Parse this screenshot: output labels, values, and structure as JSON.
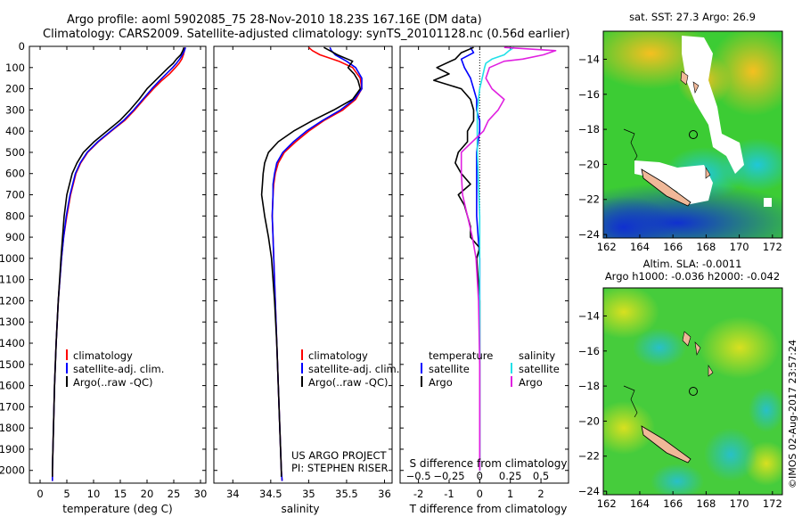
{
  "title_line1": "Argo profile: aoml 5902085_75 28-Nov-2010 18.23S 167.16E (DM data)",
  "title_line2": "Climatology: CARS2009. Satellite-adjusted climatology: synTS_20101128.nc (0.56d earlier)",
  "colors": {
    "clim": "#ff0000",
    "sat": "#0000ff",
    "argo": "#000000",
    "sat_sal": "#22e0e8",
    "argo_sal": "#e020e0"
  },
  "depth_axis": {
    "ticks": [
      0,
      100,
      200,
      300,
      400,
      500,
      600,
      700,
      800,
      900,
      1000,
      1100,
      1200,
      1300,
      1400,
      1500,
      1600,
      1700,
      1800,
      1900,
      2000
    ],
    "range": [
      0,
      2060
    ]
  },
  "legend": {
    "clim": "climatology",
    "sat": "satellite-adj. clim.",
    "argo": "Argo(..raw -QC)"
  },
  "diff_legend": {
    "temp_header": "temperature",
    "sal_header": "salinity",
    "temp_sat": "satellite",
    "temp_argo": "Argo",
    "sal_sat": "satellite",
    "sal_argo": "Argo"
  },
  "credits": {
    "line1": "US ARGO PROJECT",
    "line2": "PI: STEPHEN RISER"
  },
  "chart_data": [
    {
      "type": "line",
      "name": "temperature",
      "xlabel": "temperature (deg C)",
      "xlim": [
        -2,
        31
      ],
      "xticks": [
        0,
        5,
        10,
        15,
        20,
        25,
        30
      ],
      "ylim": [
        0,
        2060
      ],
      "series": [
        {
          "name": "climatology",
          "depth": [
            5,
            20,
            40,
            60,
            80,
            100,
            130,
            160,
            200,
            250,
            300,
            350,
            400,
            450,
            500,
            550,
            600,
            700,
            800,
            900,
            1000,
            1200,
            1400,
            1600,
            1800,
            2000,
            2050
          ],
          "values": [
            27.1,
            27.0,
            26.8,
            26.5,
            26.0,
            25.3,
            24.2,
            22.8,
            21.2,
            19.4,
            17.7,
            15.8,
            13.3,
            10.9,
            8.9,
            7.6,
            6.7,
            5.7,
            5.0,
            4.4,
            4.0,
            3.4,
            3.0,
            2.7,
            2.5,
            2.3,
            2.3
          ]
        },
        {
          "name": "satellite-adj. clim.",
          "depth": [
            5,
            20,
            40,
            60,
            80,
            100,
            130,
            160,
            200,
            250,
            300,
            350,
            400,
            450,
            500,
            550,
            600,
            700,
            800,
            900,
            1000,
            1200,
            1400,
            1600,
            1800,
            2000,
            2050
          ],
          "values": [
            27.2,
            27.0,
            26.6,
            26.1,
            25.5,
            24.8,
            23.6,
            22.4,
            20.9,
            19.2,
            17.5,
            15.6,
            13.2,
            10.8,
            8.8,
            7.5,
            6.6,
            5.6,
            4.9,
            4.4,
            4.0,
            3.4,
            3.0,
            2.7,
            2.5,
            2.3,
            2.3
          ]
        },
        {
          "name": "Argo(..raw -QC)",
          "depth": [
            5,
            20,
            40,
            60,
            80,
            100,
            130,
            160,
            200,
            250,
            300,
            350,
            400,
            450,
            500,
            550,
            600,
            700,
            800,
            900,
            1000,
            1200,
            1400,
            1600,
            1800,
            2000,
            2030
          ],
          "values": [
            26.9,
            26.7,
            26.3,
            25.5,
            24.9,
            24.0,
            22.8,
            21.6,
            20.0,
            18.5,
            16.8,
            14.9,
            12.5,
            10.1,
            8.1,
            6.9,
            6.0,
            5.0,
            4.5,
            4.2,
            3.9,
            3.4,
            3.0,
            2.7,
            2.5,
            2.3,
            2.3
          ]
        }
      ]
    },
    {
      "type": "line",
      "name": "salinity",
      "xlabel": "salinity",
      "xlim": [
        33.75,
        36.1
      ],
      "xticks": [
        34,
        34.5,
        35,
        35.5,
        36
      ],
      "ylim": [
        0,
        2060
      ],
      "series": [
        {
          "name": "climatology",
          "depth": [
            5,
            20,
            40,
            70,
            100,
            150,
            200,
            250,
            300,
            350,
            400,
            450,
            500,
            550,
            600,
            650,
            700,
            800,
            900,
            1000,
            1200,
            1400,
            1600,
            1800,
            2000,
            2050
          ],
          "values": [
            35.0,
            35.05,
            35.15,
            35.4,
            35.58,
            35.68,
            35.7,
            35.62,
            35.45,
            35.2,
            35.0,
            34.83,
            34.68,
            34.6,
            34.56,
            34.54,
            34.53,
            34.52,
            34.53,
            34.54,
            34.56,
            34.58,
            34.6,
            34.62,
            34.64,
            34.65
          ]
        },
        {
          "name": "satellite-adj. clim.",
          "depth": [
            5,
            20,
            40,
            70,
            100,
            150,
            200,
            250,
            300,
            350,
            400,
            450,
            500,
            550,
            600,
            650,
            700,
            800,
            900,
            1000,
            1200,
            1400,
            1600,
            1800,
            2000,
            2050
          ],
          "values": [
            35.28,
            35.3,
            35.35,
            35.5,
            35.62,
            35.7,
            35.7,
            35.6,
            35.42,
            35.18,
            34.97,
            34.8,
            34.66,
            34.58,
            34.55,
            34.53,
            34.53,
            34.52,
            34.53,
            34.54,
            34.56,
            34.58,
            34.6,
            34.62,
            34.64,
            34.65
          ]
        },
        {
          "name": "Argo(..raw -QC)",
          "depth": [
            5,
            20,
            40,
            70,
            100,
            130,
            160,
            200,
            250,
            300,
            350,
            400,
            450,
            500,
            550,
            600,
            650,
            700,
            750,
            800,
            900,
            1000,
            1200,
            1400,
            1600,
            1800,
            2000,
            2030
          ],
          "values": [
            35.2,
            35.28,
            35.38,
            35.58,
            35.52,
            35.6,
            35.65,
            35.68,
            35.58,
            35.33,
            35.05,
            34.8,
            34.6,
            34.47,
            34.42,
            34.4,
            34.39,
            34.38,
            34.4,
            34.42,
            34.47,
            34.51,
            34.55,
            34.58,
            34.6,
            34.62,
            34.64,
            34.64
          ]
        }
      ]
    },
    {
      "type": "line",
      "name": "difference from climatology",
      "xlabel": "T difference from climatology",
      "xlabel_top": "S difference from climatology",
      "xlim": [
        -2.6,
        2.9
      ],
      "xticks": [
        -2,
        -1,
        0,
        1,
        2
      ],
      "xticks_sal": [
        -0.5,
        -0.25,
        0,
        0.25,
        0.5
      ],
      "ylim": [
        0,
        2060
      ],
      "series": [
        {
          "name": "temperature satellite",
          "depth": [
            5,
            30,
            60,
            100,
            150,
            200,
            250,
            300,
            350,
            400,
            500,
            600,
            800,
            1000,
            1400,
            2000
          ],
          "values": [
            -0.3,
            -0.2,
            -0.6,
            -0.5,
            -0.3,
            -0.2,
            -0.1,
            -0.1,
            0.0,
            0.0,
            -0.1,
            -0.1,
            -0.1,
            0.0,
            0.0,
            0.0
          ]
        },
        {
          "name": "temperature Argo",
          "depth": [
            5,
            30,
            60,
            100,
            130,
            160,
            200,
            250,
            300,
            350,
            400,
            450,
            500,
            550,
            600,
            650,
            700,
            750,
            800,
            850,
            900,
            950,
            1000,
            1200,
            1400,
            1700,
            2000
          ],
          "values": [
            -0.2,
            -0.6,
            -0.8,
            -1.4,
            -1.0,
            -1.5,
            -0.6,
            -0.3,
            -0.2,
            -0.2,
            -0.4,
            -0.4,
            -0.7,
            -0.8,
            -0.6,
            -0.3,
            -0.7,
            -0.5,
            -0.4,
            -0.3,
            -0.3,
            0.0,
            -0.1,
            0.0,
            0.0,
            0.0,
            0.0
          ]
        },
        {
          "name": "salinity satellite",
          "depth": [
            5,
            20,
            40,
            60,
            80,
            100,
            150,
            200,
            300,
            500,
            800,
            1200,
            2000
          ],
          "values": [
            0.28,
            0.24,
            0.2,
            0.1,
            0.05,
            0.04,
            0.02,
            0.0,
            -0.02,
            -0.02,
            0.0,
            0.0,
            0.0
          ]
        },
        {
          "name": "salinity Argo",
          "depth": [
            5,
            20,
            40,
            60,
            70,
            100,
            150,
            200,
            250,
            300,
            350,
            400,
            500,
            600,
            700,
            800,
            900,
            1000,
            1200,
            1500,
            2000
          ],
          "values": [
            0.2,
            0.62,
            0.52,
            0.35,
            0.2,
            0.08,
            0.05,
            0.1,
            0.2,
            0.15,
            0.07,
            0.03,
            -0.15,
            -0.15,
            -0.14,
            -0.1,
            -0.06,
            -0.03,
            -0.01,
            0.0,
            0.0
          ]
        }
      ]
    },
    {
      "type": "heatmap",
      "name": "sat_sst_map",
      "title": "sat. SST: 27.3  Argo: 26.9",
      "xlim": [
        161.8,
        172.6
      ],
      "ylim": [
        -24.2,
        -12.4
      ],
      "xticks": [
        162,
        164,
        166,
        168,
        170,
        172
      ],
      "yticks": [
        -24,
        -22,
        -20,
        -18,
        -16,
        -14
      ],
      "argo_position": [
        167.16,
        -18.23
      ]
    },
    {
      "type": "heatmap",
      "name": "sla_map",
      "title_line1": "Altim. SLA: -0.0011",
      "title_line2": "Argo h1000: -0.036 h2000: -0.042",
      "xlim": [
        161.8,
        172.6
      ],
      "ylim": [
        -24.2,
        -12.4
      ],
      "xticks": [
        162,
        164,
        166,
        168,
        170,
        172
      ],
      "yticks": [
        -24,
        -22,
        -20,
        -18,
        -16,
        -14
      ],
      "argo_position": [
        167.16,
        -18.23
      ]
    }
  ],
  "stamp": "©IMOS 02-Aug-2017 23:57:24"
}
